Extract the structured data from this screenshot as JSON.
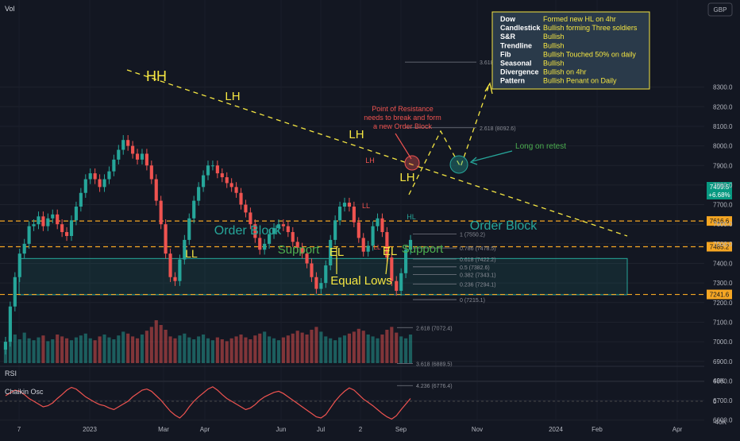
{
  "header": {
    "volume_label": "Vol",
    "currency": "GBP"
  },
  "panels": {
    "rsi_label": "RSI",
    "chaikin_label": "Chaikin Osc"
  },
  "colors": {
    "background": "#131722",
    "up": "#26a69a",
    "down": "#ef5350",
    "annotation": "#f5e642",
    "order_block": "#26a69a",
    "level": "#f5a623",
    "fib": "#787b86",
    "chaikin": "#ef5350",
    "price_badge": "#089981"
  },
  "chart_data": {
    "type": "candlestick",
    "y_axis": {
      "range": [
        6600,
        8500
      ],
      "ticks": [
        "8300.0",
        "8200.0",
        "8100.0",
        "8000.0",
        "7900.0",
        "7800.0",
        "7700.0",
        "7600.0",
        "7500.0",
        "7400.0",
        "7300.0",
        "7200.0",
        "7100.0",
        "7000.0",
        "6900.0",
        "6800.0",
        "6700.0",
        "6600.0"
      ]
    },
    "x_axis": {
      "ticks": [
        "7",
        "2023",
        "Mar",
        "Apr",
        "Jun",
        "Jul",
        "2",
        "Sep",
        "Nov",
        "2024",
        "Feb",
        "Apr"
      ]
    },
    "price_series_weekly_close": [
      7000,
      7180,
      7330,
      7450,
      7500,
      7590,
      7600,
      7640,
      7590,
      7630,
      7650,
      7600,
      7560,
      7540,
      7620,
      7690,
      7760,
      7830,
      7860,
      7830,
      7790,
      7830,
      7870,
      7930,
      7980,
      8030,
      8000,
      7960,
      7930,
      7960,
      7900,
      7830,
      7720,
      7600,
      7450,
      7330,
      7310,
      7420,
      7520,
      7630,
      7720,
      7790,
      7850,
      7900,
      7900,
      7860,
      7840,
      7810,
      7790,
      7760,
      7700,
      7660,
      7600,
      7530,
      7470,
      7500,
      7550,
      7580,
      7600,
      7590,
      7560,
      7510,
      7480,
      7450,
      7400,
      7330,
      7270,
      7300,
      7390,
      7520,
      7620,
      7690,
      7710,
      7690,
      7610,
      7530,
      7460,
      7490,
      7590,
      7630,
      7560,
      7430,
      7310,
      7260,
      7350,
      7470,
      7520
    ],
    "volume": [
      22,
      28,
      30,
      25,
      32,
      26,
      24,
      27,
      29,
      23,
      25,
      30,
      28,
      26,
      24,
      27,
      29,
      31,
      26,
      24,
      28,
      30,
      27,
      25,
      29,
      33,
      31,
      28,
      26,
      30,
      34,
      38,
      45,
      40,
      35,
      28,
      26,
      29,
      31,
      27,
      25,
      28,
      30,
      26,
      24,
      27,
      25,
      23,
      26,
      28,
      30,
      27,
      25,
      29,
      31,
      33,
      28,
      26,
      24,
      27,
      29,
      31,
      34,
      32,
      30,
      35,
      38,
      33,
      28,
      26,
      24,
      27,
      29,
      31,
      33,
      36,
      34,
      30,
      28,
      26,
      30,
      35,
      38,
      32,
      28,
      26,
      30
    ],
    "chaikin": [
      10,
      15,
      20,
      18,
      12,
      5,
      0,
      -5,
      -10,
      -8,
      -3,
      5,
      12,
      20,
      25,
      22,
      15,
      8,
      3,
      -2,
      -6,
      -8,
      -12,
      -15,
      -10,
      -5,
      0,
      8,
      14,
      20,
      22,
      18,
      10,
      2,
      -8,
      -18,
      -25,
      -30,
      -22,
      -10,
      0,
      8,
      15,
      22,
      26,
      20,
      12,
      5,
      0,
      -5,
      -10,
      -15,
      -12,
      -6,
      2,
      8,
      12,
      16,
      18,
      14,
      8,
      2,
      -4,
      -10,
      -16,
      -22,
      -28,
      -30,
      -24,
      -12,
      0,
      10,
      18,
      24,
      20,
      12,
      4,
      -2,
      -8,
      -15,
      -22,
      -28,
      -32,
      -26,
      -15,
      -5,
      5
    ],
    "chaikin_ticks": [
      "40K",
      "0",
      "-40K"
    ],
    "annotations": {
      "pivots": [
        "HH",
        "LH",
        "LH",
        "LH",
        "LL",
        "EL",
        "EL",
        "LH",
        "LL",
        "LL",
        "HL"
      ],
      "labels": [
        "Order Block",
        "Order Block",
        "Support",
        "Support",
        "Equal Lows",
        "Long on retest"
      ],
      "resistance_note": [
        "Point of Resistance",
        "needs to break and form",
        "a new Order Block"
      ]
    },
    "levels": [
      {
        "value": 7616.6,
        "label": "7616.6"
      },
      {
        "value": 7485.2,
        "label": "7485.2"
      },
      {
        "value": 7241.6,
        "label": "7241.6"
      }
    ],
    "current_price": {
      "value": "7499.5",
      "change": "+6.68%"
    },
    "order_block_range": [
      7240,
      7425
    ],
    "fibonacci": [
      {
        "label": "3.618 (8427.9)",
        "value": 8427.9
      },
      {
        "label": "2.618 (8092.6)",
        "value": 8092.6
      },
      {
        "label": "1 (7550.2)",
        "value": 7550.2
      },
      {
        "label": "0.786 (7478.5)",
        "value": 7478.5
      },
      {
        "label": "0.618 (7422.2)",
        "value": 7422.2
      },
      {
        "label": "0.5 (7382.6)",
        "value": 7382.6
      },
      {
        "label": "0.382 (7343.1)",
        "value": 7343.1
      },
      {
        "label": "0.236 (7294.1)",
        "value": 7294.1
      },
      {
        "label": "0 (7215.1)",
        "value": 7215.1
      },
      {
        "label": "2.618 (7072.4)",
        "value": 7072.4
      },
      {
        "label": "3.618 (6889.5)",
        "value": 6889.5
      },
      {
        "label": "4.236 (6776.4)",
        "value": 6776.4
      }
    ],
    "summary_table": [
      {
        "key": "Dow",
        "value": "Formed new HL on 4hr"
      },
      {
        "key": "Candlestick",
        "value": "Bullish forming Three soldiers"
      },
      {
        "key": "S&R",
        "value": "Bullish"
      },
      {
        "key": "Trendline",
        "value": "Bullish"
      },
      {
        "key": "Fib",
        "value": "Bullish Touched 50% on daily"
      },
      {
        "key": "Seasonal",
        "value": "Bullish"
      },
      {
        "key": "Divergence",
        "value": "Bullish on 4hr"
      },
      {
        "key": "Pattern",
        "value": "Bullish Penant on Daily"
      }
    ]
  }
}
